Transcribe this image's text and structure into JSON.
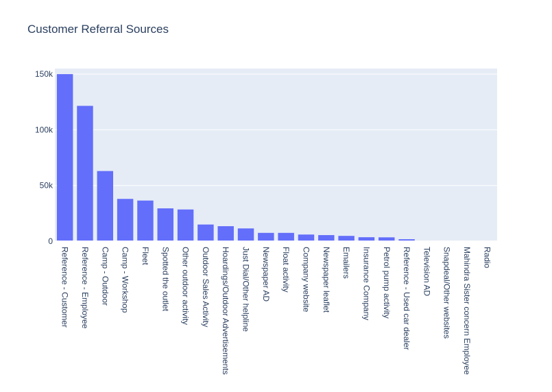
{
  "chart_data": {
    "type": "bar",
    "title": "Customer Referral Sources",
    "xlabel": "",
    "ylabel": "",
    "ylim": [
      0,
      155000
    ],
    "yticks": [
      0,
      50000,
      100000,
      150000
    ],
    "ytick_labels": [
      "0",
      "50k",
      "100k",
      "150k"
    ],
    "grid": true,
    "legend": "none",
    "colors": {
      "bar": "#636efa",
      "plot_bg": "#e5ecf6",
      "grid": "#ffffff",
      "text": "#2a3f5f"
    },
    "categories": [
      "Reference - Customer",
      "Reference - Employee",
      "Camp - Outdoor",
      "Camp - Workshop",
      "Fleet",
      "Spotted the outlet",
      "Other outdoor activity",
      "Outdoor Sales Activity",
      "Hoardings/Outdoor Advertisements",
      "Just Dial/Other helpline",
      "Newspaper AD",
      "Float activity",
      "Company website",
      "Newspaper leaflet",
      "Emailers",
      "Insurance Company",
      "Petrol pump activity",
      "Reference - Used car dealer",
      "Television AD",
      "Snapdeal/Other websites",
      "Mahindra Sister concern Employee",
      "Radio"
    ],
    "values": [
      150000,
      121500,
      63000,
      38000,
      36500,
      29500,
      28500,
      15000,
      13500,
      11500,
      7500,
      7500,
      6000,
      5500,
      4800,
      3600,
      3500,
      1800,
      600,
      500,
      400,
      100
    ]
  }
}
